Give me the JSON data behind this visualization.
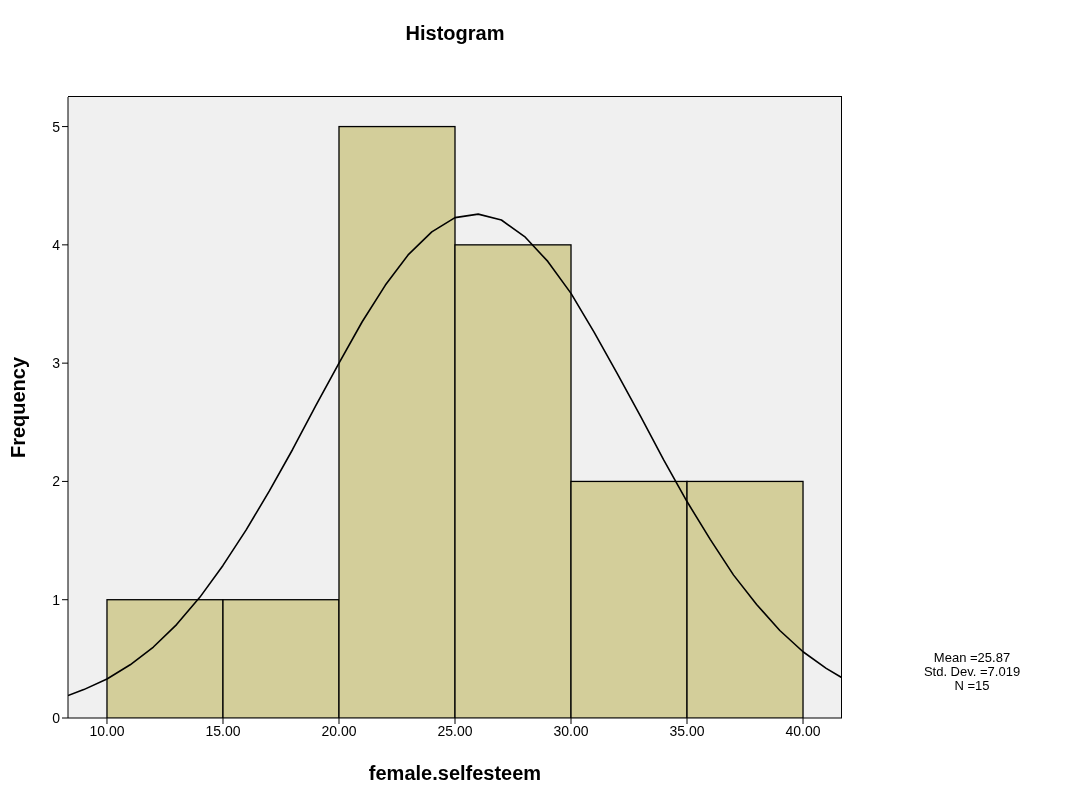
{
  "chart_data": {
    "type": "histogram",
    "title": "Histogram",
    "xlabel": "female.selfesteem",
    "ylabel": "Frequency",
    "bins": [
      10,
      15,
      20,
      25,
      30,
      35,
      40
    ],
    "values": [
      1,
      1,
      5,
      4,
      2,
      2
    ],
    "color": "#d3ce9a",
    "xlim": [
      8.32,
      41.68
    ],
    "ylim": [
      0,
      5.25
    ],
    "xticks": [
      {
        "value": 10,
        "label": "10.00"
      },
      {
        "value": 15,
        "label": "15.00"
      },
      {
        "value": 20,
        "label": "20.00"
      },
      {
        "value": 25,
        "label": "25.00"
      },
      {
        "value": 30,
        "label": "30.00"
      },
      {
        "value": 35,
        "label": "35.00"
      },
      {
        "value": 40,
        "label": "40.00"
      }
    ],
    "yticks": [
      0,
      1,
      2,
      3,
      4,
      5
    ],
    "series": [
      {
        "type": "line",
        "color": "#000000",
        "x": [
          8.32,
          9,
          10,
          11,
          12,
          13,
          14,
          15,
          16,
          17,
          18,
          19,
          20,
          21,
          22,
          23,
          24,
          25,
          26,
          27,
          28,
          29,
          30,
          31,
          32,
          33,
          34,
          35,
          36,
          37,
          38,
          39,
          40,
          41,
          41.68
        ],
        "values": [
          0.19,
          0.24,
          0.33,
          0.45,
          0.6,
          0.79,
          1.02,
          1.29,
          1.59,
          1.92,
          2.27,
          2.64,
          3.0,
          3.35,
          3.66,
          3.92,
          4.11,
          4.23,
          4.26,
          4.21,
          4.07,
          3.86,
          3.59,
          3.26,
          2.91,
          2.55,
          2.18,
          1.83,
          1.51,
          1.21,
          0.96,
          0.74,
          0.56,
          0.42,
          0.34
        ]
      }
    ],
    "annotations": [
      "Mean =25.87",
      "Std. Dev. =7.019",
      "N =15"
    ]
  }
}
